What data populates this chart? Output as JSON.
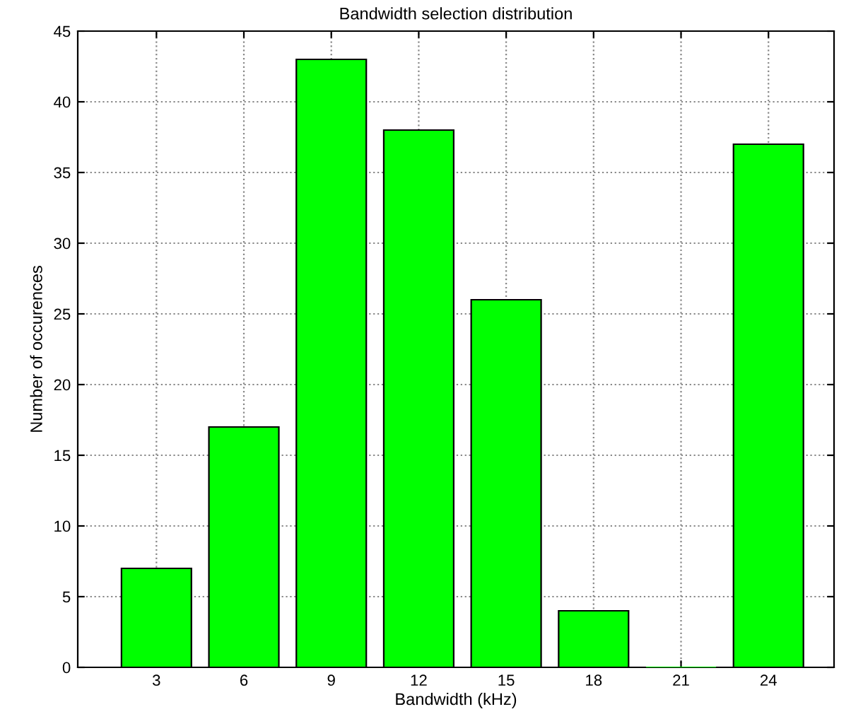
{
  "chart_data": {
    "type": "bar",
    "title": "Bandwidth selection distribution",
    "xlabel": "Bandwidth (kHz)",
    "ylabel": "Number of occurences",
    "categories": [
      "3",
      "6",
      "9",
      "12",
      "15",
      "18",
      "21",
      "24"
    ],
    "values": [
      7,
      17,
      43,
      38,
      26,
      4,
      0,
      37
    ],
    "color": "#00ff00",
    "ylim": [
      0,
      45
    ],
    "yticks": [
      0,
      5,
      10,
      15,
      20,
      25,
      30,
      35,
      40,
      45
    ],
    "grid": true
  }
}
